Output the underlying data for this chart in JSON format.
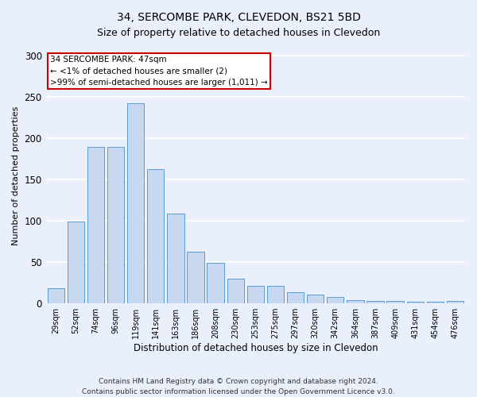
{
  "title": "34, SERCOMBE PARK, CLEVEDON, BS21 5BD",
  "subtitle": "Size of property relative to detached houses in Clevedon",
  "xlabel": "Distribution of detached houses by size in Clevedon",
  "ylabel": "Number of detached properties",
  "footnote1": "Contains HM Land Registry data © Crown copyright and database right 2024.",
  "footnote2": "Contains public sector information licensed under the Open Government Licence v3.0.",
  "bar_labels": [
    "29sqm",
    "52sqm",
    "74sqm",
    "96sqm",
    "119sqm",
    "141sqm",
    "163sqm",
    "186sqm",
    "208sqm",
    "230sqm",
    "253sqm",
    "275sqm",
    "297sqm",
    "320sqm",
    "342sqm",
    "364sqm",
    "387sqm",
    "409sqm",
    "431sqm",
    "454sqm",
    "476sqm"
  ],
  "bar_values": [
    18,
    99,
    190,
    190,
    243,
    163,
    109,
    63,
    49,
    30,
    21,
    21,
    14,
    11,
    8,
    4,
    3,
    3,
    2,
    2,
    3
  ],
  "bar_color": "#c8d8f0",
  "bar_edge_color": "#5b9bd5",
  "annotation_text": "34 SERCOMBE PARK: 47sqm\n← <1% of detached houses are smaller (2)\n>99% of semi-detached houses are larger (1,011) →",
  "annotation_box_color": "#ffffff",
  "annotation_box_edge": "#cc0000",
  "ylim": [
    0,
    310
  ],
  "yticks": [
    0,
    50,
    100,
    150,
    200,
    250,
    300
  ],
  "background_color": "#eaf0fb",
  "grid_color": "#ffffff",
  "figsize": [
    6.0,
    5.0
  ],
  "dpi": 100
}
